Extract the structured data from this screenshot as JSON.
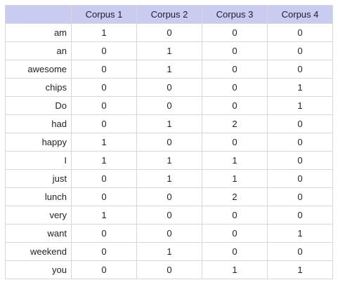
{
  "table": {
    "headers": [
      "Corpus 1",
      "Corpus 2",
      "Corpus 3",
      "Corpus 4"
    ],
    "rows": [
      {
        "term": "am",
        "values": [
          "1",
          "0",
          "0",
          "0"
        ]
      },
      {
        "term": "an",
        "values": [
          "0",
          "1",
          "0",
          "0"
        ]
      },
      {
        "term": "awesome",
        "values": [
          "0",
          "1",
          "0",
          "0"
        ]
      },
      {
        "term": "chips",
        "values": [
          "0",
          "0",
          "0",
          "1"
        ]
      },
      {
        "term": "Do",
        "values": [
          "0",
          "0",
          "0",
          "1"
        ]
      },
      {
        "term": "had",
        "values": [
          "0",
          "1",
          "2",
          "0"
        ]
      },
      {
        "term": "happy",
        "values": [
          "1",
          "0",
          "0",
          "0"
        ]
      },
      {
        "term": "I",
        "values": [
          "1",
          "1",
          "1",
          "0"
        ]
      },
      {
        "term": "just",
        "values": [
          "0",
          "1",
          "1",
          "0"
        ]
      },
      {
        "term": "lunch",
        "values": [
          "0",
          "0",
          "2",
          "0"
        ]
      },
      {
        "term": "very",
        "values": [
          "1",
          "0",
          "0",
          "0"
        ]
      },
      {
        "term": "want",
        "values": [
          "0",
          "0",
          "0",
          "1"
        ]
      },
      {
        "term": "weekend",
        "values": [
          "0",
          "1",
          "0",
          "0"
        ]
      },
      {
        "term": "you",
        "values": [
          "0",
          "0",
          "1",
          "1"
        ]
      }
    ]
  },
  "colors": {
    "header_bg": "#c9cbf0",
    "grid": "#d7d7d7"
  }
}
